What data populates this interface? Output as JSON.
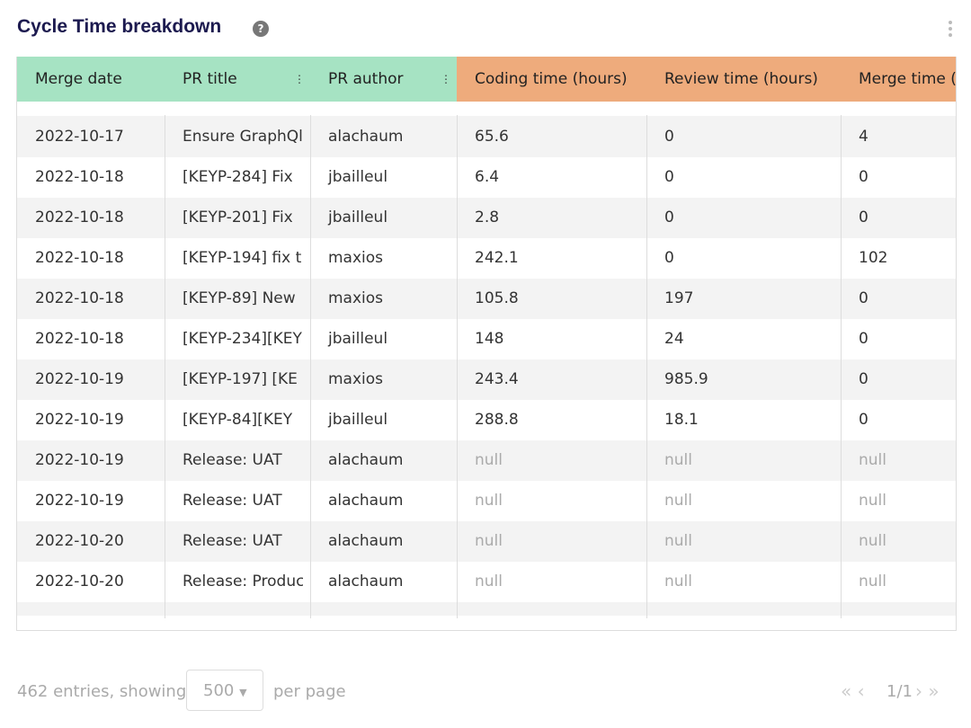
{
  "header": {
    "title": "Cycle Time breakdown"
  },
  "table": {
    "columns": [
      "Merge date",
      "PR title",
      "PR author",
      "Coding time (hours)",
      "Review time (hours)",
      "Merge time ("
    ],
    "rows": [
      [
        "2022-10-17",
        "Ensure GraphQl",
        "alachaum",
        "65.6",
        "0",
        "4"
      ],
      [
        "2022-10-18",
        "[KEYP-284] Fix",
        "jbailleul",
        "6.4",
        "0",
        "0"
      ],
      [
        "2022-10-18",
        "[KEYP-201] Fix",
        "jbailleul",
        "2.8",
        "0",
        "0"
      ],
      [
        "2022-10-18",
        "[KEYP-194] fix t",
        "maxios",
        "242.1",
        "0",
        "102"
      ],
      [
        "2022-10-18",
        "[KEYP-89] New",
        "maxios",
        "105.8",
        "197",
        "0"
      ],
      [
        "2022-10-18",
        "[KEYP-234][KEY",
        "jbailleul",
        "148",
        "24",
        "0"
      ],
      [
        "2022-10-19",
        "[KEYP-197] [KE",
        "maxios",
        "243.4",
        "985.9",
        "0"
      ],
      [
        "2022-10-19",
        "[KEYP-84][KEY",
        "jbailleul",
        "288.8",
        "18.1",
        "0"
      ],
      [
        "2022-10-19",
        "Release: UAT",
        "alachaum",
        "null",
        "null",
        "null"
      ],
      [
        "2022-10-19",
        "Release: UAT",
        "alachaum",
        "null",
        "null",
        "null"
      ],
      [
        "2022-10-20",
        "Release: UAT",
        "alachaum",
        "null",
        "null",
        "null"
      ],
      [
        "2022-10-20",
        "Release: Produc",
        "alachaum",
        "null",
        "null",
        "null"
      ]
    ]
  },
  "footer": {
    "entries": "462 entries, showing",
    "page_size": "500",
    "per_page": "per page",
    "pages": "1/1"
  }
}
